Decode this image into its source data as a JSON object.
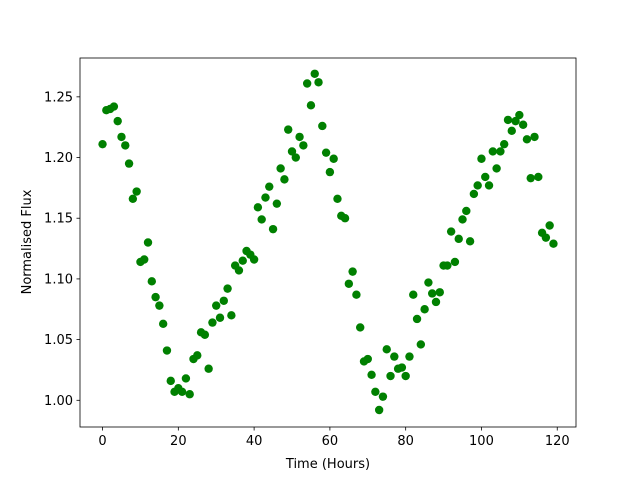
{
  "chart_data": {
    "type": "scatter",
    "x_label": "Time (Hours)",
    "y_label": "Normalised Flux",
    "color": "#008000",
    "x": [
      0,
      1,
      2,
      3,
      4,
      5,
      6,
      7,
      8,
      9,
      10,
      11,
      12,
      13,
      14,
      15,
      16,
      17,
      18,
      19,
      20,
      21,
      22,
      23,
      24,
      25,
      26,
      27,
      28,
      29,
      30,
      31,
      32,
      33,
      34,
      35,
      36,
      37,
      38,
      39,
      40,
      41,
      42,
      43,
      44,
      45,
      46,
      47,
      48,
      49,
      50,
      51,
      52,
      53,
      54,
      55,
      56,
      57,
      58,
      59,
      60,
      61,
      62,
      63,
      64,
      65,
      66,
      67,
      68,
      69,
      70,
      71,
      72,
      73,
      74,
      75,
      76,
      77,
      78,
      79,
      80,
      81,
      82,
      83,
      84,
      85,
      86,
      87,
      88,
      89,
      90,
      91,
      92,
      93,
      94,
      95,
      96,
      97,
      98,
      99,
      100,
      101,
      102,
      103,
      104,
      105,
      106,
      107,
      108,
      109,
      110,
      111,
      112,
      113,
      114,
      115,
      116,
      117,
      118,
      119
    ],
    "values": [
      1.211,
      1.239,
      1.24,
      1.242,
      1.23,
      1.217,
      1.21,
      1.195,
      1.166,
      1.172,
      1.114,
      1.116,
      1.13,
      1.098,
      1.085,
      1.078,
      1.063,
      1.041,
      1.016,
      1.007,
      1.01,
      1.007,
      1.018,
      1.005,
      1.034,
      1.037,
      1.056,
      1.054,
      1.026,
      1.064,
      1.078,
      1.068,
      1.082,
      1.092,
      1.07,
      1.111,
      1.107,
      1.115,
      1.123,
      1.12,
      1.116,
      1.159,
      1.149,
      1.167,
      1.176,
      1.141,
      1.162,
      1.191,
      1.182,
      1.223,
      1.205,
      1.2,
      1.217,
      1.21,
      1.261,
      1.243,
      1.269,
      1.262,
      1.226,
      1.204,
      1.188,
      1.199,
      1.166,
      1.152,
      1.15,
      1.096,
      1.106,
      1.087,
      1.06,
      1.032,
      1.034,
      1.021,
      1.007,
      0.992,
      1.003,
      1.042,
      1.02,
      1.036,
      1.026,
      1.027,
      1.02,
      1.036,
      1.087,
      1.067,
      1.046,
      1.075,
      1.097,
      1.088,
      1.081,
      1.089,
      1.111,
      1.111,
      1.139,
      1.114,
      1.133,
      1.149,
      1.156,
      1.131,
      1.17,
      1.177,
      1.199,
      1.184,
      1.177,
      1.205,
      1.191,
      1.205,
      1.211,
      1.231,
      1.222,
      1.23,
      1.235,
      1.227,
      1.215,
      1.183,
      1.217,
      1.184,
      1.138,
      1.134,
      1.144,
      1.129
    ],
    "xlim": [
      -5.95,
      124.95
    ],
    "ylim": [
      0.978,
      1.282
    ],
    "xticks": [
      0,
      20,
      40,
      60,
      80,
      100,
      120
    ],
    "yticks": [
      {
        "value": 1.0,
        "label": "1.00"
      },
      1.05,
      {
        "value": 1.1,
        "label": "1.10"
      },
      1.15,
      {
        "value": 1.2,
        "label": "1.20"
      },
      1.25
    ]
  }
}
